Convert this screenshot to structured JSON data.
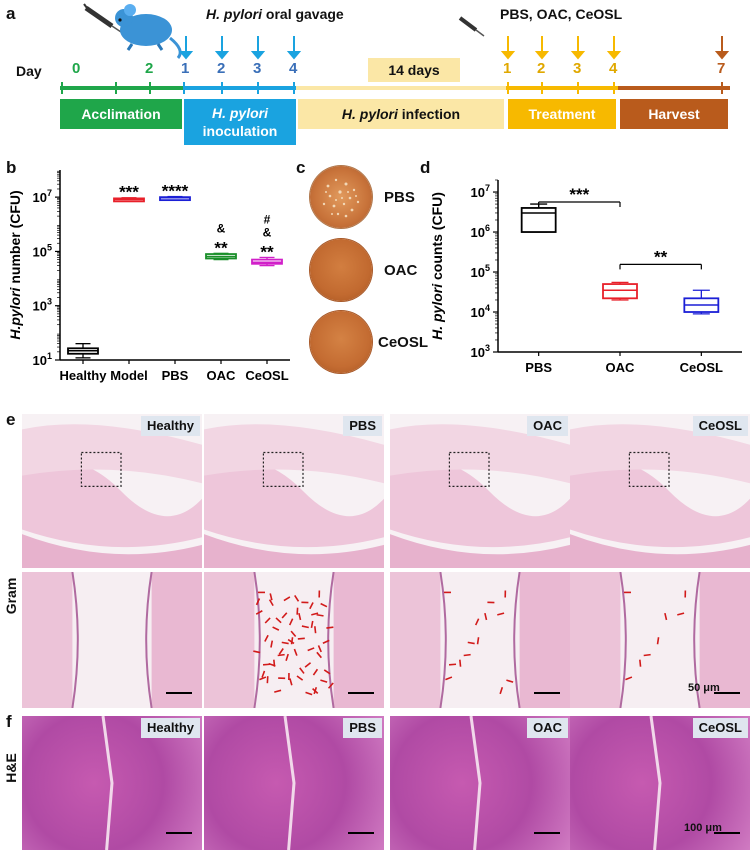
{
  "panels": {
    "a": "a",
    "b": "b",
    "c": "c",
    "d": "d",
    "e": "e",
    "f": "f"
  },
  "timeline": {
    "gavage_italic": "H. pylori",
    "gavage_rest": " oral gavage",
    "treat_label": "PBS, OAC, CeOSL",
    "day_label": "Day",
    "days_acclim": [
      "0",
      "2"
    ],
    "days_inoc": [
      "1",
      "2",
      "3",
      "4"
    ],
    "days_treat": [
      "1",
      "2",
      "3",
      "4"
    ],
    "day_harvest": "7",
    "gap_label": "14 days",
    "phases": {
      "acclimation": "Acclimation",
      "inoc_italic": "H. pylori",
      "inoc_rest": "inoculation",
      "infection_italic": "H. pylori",
      "infection_rest": " infection",
      "treatment": "Treatment",
      "harvest": "Harvest"
    },
    "colors": {
      "acclim": "#1fa64a",
      "inoc": "#1aa3e0",
      "infect": "#fbe7a6",
      "treat": "#f7b900",
      "harvest": "#b95b1c",
      "mouse": "#3b93d6"
    }
  },
  "chart_data": [
    {
      "type": "box",
      "panel": "b",
      "ylabel_italic": "H.pylori",
      "ylabel_rest": " number (CFU)",
      "yscale": "log",
      "ylim": [
        10,
        100000000
      ],
      "yticks": [
        "10",
        "10",
        "10",
        "10"
      ],
      "ytick_exps": [
        "1",
        "3",
        "5",
        "7"
      ],
      "categories": [
        "Healthy",
        "Model",
        "PBS",
        "OAC",
        "CeOSL"
      ],
      "colors": [
        "#000000",
        "#e8202a",
        "#1b1fd6",
        "#1a8f2a",
        "#d11fc9"
      ],
      "boxes": [
        {
          "name": "Healthy",
          "min": 12,
          "q1": 17,
          "median": 22,
          "q3": 27,
          "max": 40
        },
        {
          "name": "Model",
          "min": 7000000,
          "q1": 7500000,
          "median": 8200000,
          "q3": 9000000,
          "max": 9500000
        },
        {
          "name": "PBS",
          "min": 8500000,
          "q1": 9000000,
          "median": 9500000,
          "q3": 10000000,
          "max": 10500000
        },
        {
          "name": "OAC",
          "min": 50000,
          "q1": 55000,
          "median": 65000,
          "q3": 80000,
          "max": 85000
        },
        {
          "name": "CeOSL",
          "min": 30000,
          "q1": 35000,
          "median": 40000,
          "q3": 50000,
          "max": 60000
        }
      ],
      "annotations": [
        {
          "cat": "Model",
          "lines": [
            "***"
          ]
        },
        {
          "cat": "PBS",
          "lines": [
            "****"
          ]
        },
        {
          "cat": "OAC",
          "lines": [
            "&",
            "**"
          ]
        },
        {
          "cat": "CeOSL",
          "lines": [
            "#",
            "&",
            "**"
          ]
        }
      ]
    },
    {
      "type": "box",
      "panel": "d",
      "ylabel_italic": "H. pylori",
      "ylabel_rest": " counts (CFU)",
      "yscale": "log",
      "ylim": [
        1000,
        20000000
      ],
      "yticks": [
        "10",
        "10",
        "10",
        "10",
        "10"
      ],
      "ytick_exps": [
        "3",
        "4",
        "5",
        "6",
        "7"
      ],
      "categories": [
        "PBS",
        "OAC",
        "CeOSL"
      ],
      "colors": [
        "#000000",
        "#e8202a",
        "#1b1fd6"
      ],
      "boxes": [
        {
          "name": "PBS",
          "min": 1000000,
          "q1": 1000000,
          "median": 3000000,
          "q3": 4000000,
          "max": 5000000
        },
        {
          "name": "OAC",
          "min": 20000,
          "q1": 22000,
          "median": 35000,
          "q3": 50000,
          "max": 55000
        },
        {
          "name": "CeOSL",
          "min": 9000,
          "q1": 10000,
          "median": 15000,
          "q3": 22000,
          "max": 35000
        }
      ],
      "brackets": [
        {
          "from": "PBS",
          "to": "OAC",
          "label": "***"
        },
        {
          "from": "OAC",
          "to": "CeOSL",
          "label": "**"
        }
      ]
    }
  ],
  "plates": [
    "PBS",
    "OAC",
    "CeOSL"
  ],
  "histology": {
    "groups": [
      "Healthy",
      "PBS",
      "OAC",
      "CeOSL"
    ],
    "gram_label": "Gram",
    "he_label": "H&E",
    "gram_scale": "50 μm",
    "he_scale": "100 μm"
  }
}
